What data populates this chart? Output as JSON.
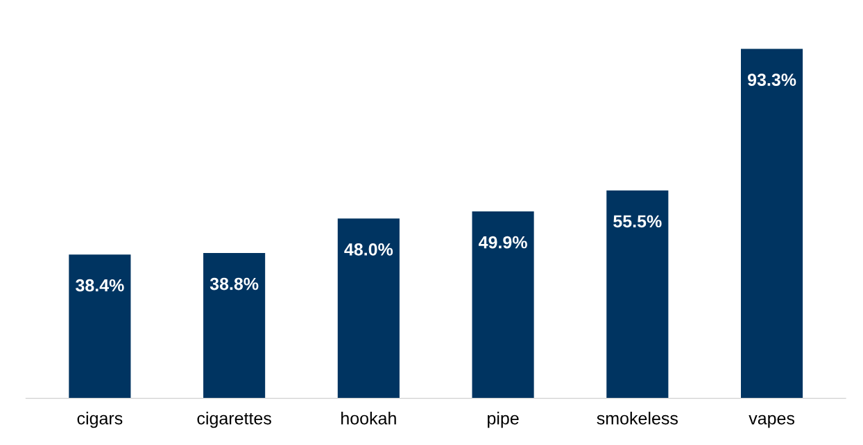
{
  "chart_data": {
    "type": "bar",
    "categories": [
      "cigars",
      "cigarettes",
      "hookah",
      "pipe",
      "smokeless",
      "vapes"
    ],
    "values": [
      38.4,
      38.8,
      48.0,
      49.9,
      55.5,
      93.3
    ],
    "value_labels": [
      "38.4%",
      "38.8%",
      "48.0%",
      "49.9%",
      "55.5%",
      "93.3%"
    ],
    "color": "#003461",
    "grid": false,
    "legend": false
  }
}
